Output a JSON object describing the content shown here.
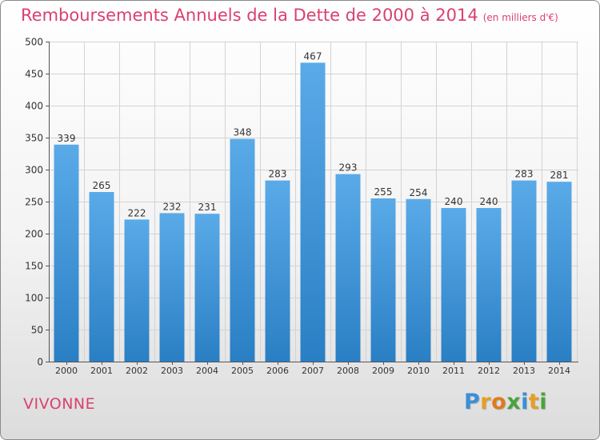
{
  "chart_data": {
    "type": "bar",
    "title": "Remboursements Annuels de la Dette de 2000 à 2014",
    "unit_label": "(en milliers d'€)",
    "categories": [
      "2000",
      "2001",
      "2002",
      "2003",
      "2004",
      "2005",
      "2006",
      "2007",
      "2008",
      "2009",
      "2010",
      "2011",
      "2012",
      "2013",
      "2014"
    ],
    "values": [
      339,
      265,
      222,
      232,
      231,
      348,
      283,
      467,
      293,
      255,
      254,
      240,
      240,
      283,
      281
    ],
    "ylim": [
      0,
      500
    ],
    "yticks": [
      0,
      50,
      100,
      150,
      200,
      250,
      300,
      350,
      400,
      450,
      500
    ],
    "grid": true,
    "bar_color_top": "#5aaae8",
    "bar_color_bottom": "#2a7fc4",
    "xlabel": "",
    "ylabel": ""
  },
  "commune": "VIVONNE",
  "logo": {
    "text": "Proxiti",
    "letters": [
      {
        "char": "P",
        "color": "#3a8fd6"
      },
      {
        "char": "r",
        "color": "#e2a024"
      },
      {
        "char": "o",
        "color": "#e07a1e"
      },
      {
        "char": "x",
        "color": "#4aa33a"
      },
      {
        "char": "i",
        "color": "#3a8fd6"
      },
      {
        "char": "t",
        "color": "#e2a024"
      },
      {
        "char": "i",
        "color": "#4aa33a"
      }
    ]
  }
}
